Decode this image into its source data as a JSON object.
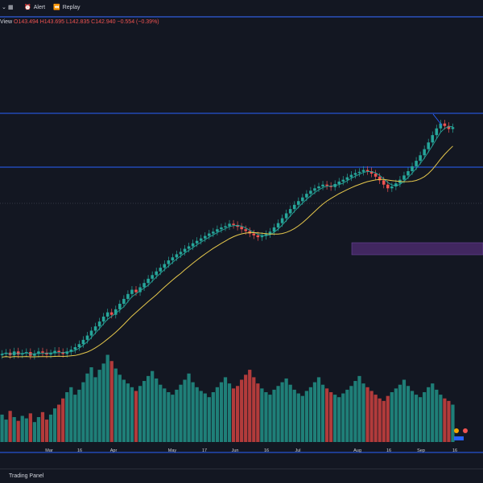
{
  "toolbar": {
    "layout_icon": "grid-icon",
    "alert_label": "Alert",
    "replay_label": "Replay"
  },
  "legend": {
    "title_fragment": "View",
    "open": "O143.494",
    "high": "H143.695",
    "low": "L142.835",
    "close": "C142.940",
    "change": "−0.554 (−0.39%)"
  },
  "bottom": {
    "panel_label": "Trading Panel"
  },
  "colors": {
    "background": "#131722",
    "up": "#26a69a",
    "down": "#ef5350",
    "ma_fast": "#26a69a",
    "ma_slow": "#e6c84c",
    "hline": "#2962ff",
    "zone": "#4a2a6b",
    "volume_up": "#1f7f78",
    "volume_down": "#b23b3b"
  },
  "chart_data": {
    "type": "candlestick",
    "x_tick_labels": [
      "Mar",
      "16",
      "Apr",
      "May",
      "17",
      "Jun",
      "16",
      "Jul",
      "Aug",
      "16",
      "Sep",
      "16"
    ],
    "horizontal_lines": 3,
    "price_close_sequence": [
      118.5,
      118.7,
      118.3,
      118.9,
      118.4,
      118.6,
      118.8,
      118.2,
      118.5,
      118.9,
      118.7,
      118.4,
      118.6,
      119.0,
      118.8,
      118.5,
      118.9,
      119.2,
      119.6,
      120.1,
      120.8,
      121.5,
      122.3,
      123.0,
      123.8,
      124.6,
      125.3,
      124.9,
      125.8,
      126.7,
      127.5,
      128.3,
      129.0,
      128.6,
      129.4,
      130.1,
      130.8,
      131.4,
      132.0,
      132.6,
      133.2,
      133.8,
      134.3,
      134.8,
      135.2,
      135.7,
      136.1,
      136.6,
      137.0,
      137.4,
      137.8,
      138.2,
      138.5,
      138.9,
      139.2,
      139.4,
      139.8,
      139.6,
      139.3,
      138.9,
      138.6,
      138.2,
      137.9,
      137.6,
      137.8,
      138.1,
      138.5,
      139.2,
      139.9,
      140.7,
      141.5,
      142.2,
      142.9,
      143.5,
      144.1,
      144.7,
      145.2,
      145.6,
      145.9,
      146.2,
      146.0,
      145.8,
      146.3,
      146.7,
      147.0,
      147.4,
      147.8,
      148.1,
      148.3,
      148.6,
      148.4,
      148.0,
      147.5,
      146.9,
      146.2,
      145.6,
      145.9,
      146.4,
      147.0,
      147.7,
      148.4,
      149.2,
      150.1,
      151.0,
      152.0,
      153.1,
      154.3,
      155.4,
      156.2,
      155.8,
      155.3,
      155.6
    ],
    "volume_sequence": [
      22,
      18,
      25,
      20,
      17,
      21,
      19,
      23,
      16,
      20,
      24,
      18,
      22,
      27,
      30,
      35,
      40,
      44,
      38,
      42,
      48,
      55,
      60,
      52,
      58,
      63,
      70,
      65,
      59,
      54,
      50,
      47,
      44,
      41,
      45,
      49,
      53,
      57,
      51,
      46,
      43,
      40,
      38,
      42,
      46,
      50,
      55,
      48,
      44,
      41,
      39,
      36,
      40,
      44,
      48,
      52,
      47,
      43,
      45,
      50,
      54,
      58,
      52,
      47,
      43,
      40,
      38,
      42,
      45,
      48,
      51,
      46,
      42,
      39,
      37,
      41,
      44,
      48,
      52,
      46,
      43,
      40,
      38,
      36,
      39,
      42,
      45,
      49,
      53,
      47,
      44,
      41,
      38,
      35,
      33,
      37,
      40,
      43,
      46,
      50,
      45,
      41,
      38,
      36,
      40,
      44,
      47,
      42,
      38,
      35,
      33,
      30
    ]
  }
}
